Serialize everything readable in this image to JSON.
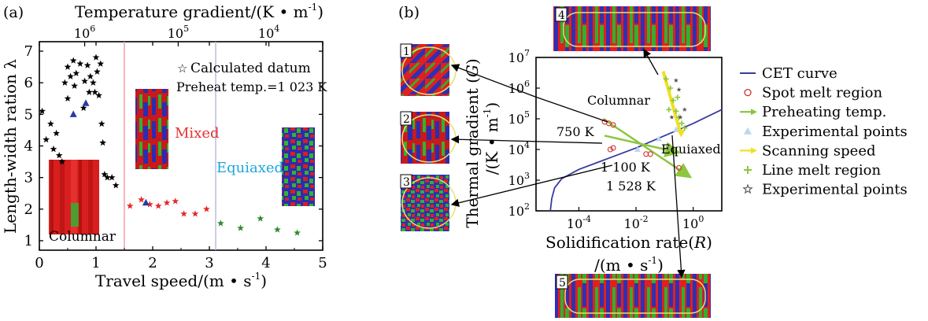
{
  "colors": {
    "axis": "#000000",
    "star_black": "#000000",
    "star_red": "#e52a2a",
    "star_green": "#2e8b2e",
    "triangle_blue": "#2a3aa8",
    "mixed_line": "#f29aa0",
    "equiaxed_line": "#b8b8dc",
    "mixed_text": "#e53030",
    "equiaxed_text": "#1aa7d8",
    "cet_curve": "#3a3aa0",
    "spot_melt": "#d03030",
    "preheat": "#8cc63f",
    "experimental_tri": "#b8d8ec",
    "scanning": "#f0e020",
    "line_melt": "#8cc63f",
    "experimental_star": "#555555",
    "grain_red": "#e02020",
    "grain_blue": "#3030b0",
    "grain_green": "#30b030"
  },
  "chart_data": [
    {
      "panel_label": "(a)",
      "type": "scatter",
      "top_axis_title": "Temperature gradient/(K • m",
      "top_axis_title_sup": "-1",
      "top_axis_title_end": ")",
      "top_ticks": [
        {
          "base": "10",
          "exp": "6",
          "at_speed": 0.8
        },
        {
          "base": "10",
          "exp": "5",
          "at_speed": 2.45
        },
        {
          "base": "10",
          "exp": "4",
          "at_speed": 4.05
        }
      ],
      "xlabel": "Travel speed/(m • s",
      "xlabel_sup": "-1",
      "xlabel_end": ")",
      "ylabel": "Length-width ration λ",
      "xlim": [
        0,
        5
      ],
      "ylim": [
        0.7,
        7.3
      ],
      "xticks": [
        "0",
        "1",
        "2",
        "3",
        "4",
        "5"
      ],
      "yticks": [
        "1",
        "2",
        "3",
        "4",
        "5",
        "6",
        "7"
      ],
      "legend": "Calculated datum",
      "preheat_note": "Preheat temp.=1 023 K",
      "region_boundaries": [
        1.5,
        3.1
      ],
      "region_labels": {
        "columnar": "Columnar",
        "mixed": "Mixed",
        "equiaxed": "Equiaxed"
      },
      "series": [
        {
          "kind": "star",
          "color": "star_black",
          "points": [
            [
              0.05,
              5.1
            ],
            [
              0.2,
              4.7
            ],
            [
              0.12,
              4.2
            ],
            [
              0.25,
              3.9
            ],
            [
              0.35,
              3.7
            ],
            [
              0.4,
              3.5
            ],
            [
              0.3,
              4.4
            ],
            [
              0.45,
              6.0
            ],
            [
              0.5,
              6.5
            ],
            [
              0.5,
              5.5
            ],
            [
              0.55,
              6.2
            ],
            [
              0.6,
              6.7
            ],
            [
              0.62,
              5.9
            ],
            [
              0.65,
              6.3
            ],
            [
              0.72,
              6.6
            ],
            [
              0.78,
              5.2
            ],
            [
              0.8,
              6.05
            ],
            [
              0.85,
              6.55
            ],
            [
              0.88,
              5.7
            ],
            [
              0.9,
              6.2
            ],
            [
              0.95,
              6.0
            ],
            [
              0.98,
              5.7
            ],
            [
              1.0,
              6.8
            ],
            [
              1.02,
              6.35
            ],
            [
              1.05,
              5.6
            ],
            [
              1.08,
              6.6
            ],
            [
              1.1,
              4.7
            ],
            [
              1.12,
              4.1
            ],
            [
              1.15,
              3.1
            ],
            [
              1.2,
              3.0
            ],
            [
              1.28,
              3.0
            ],
            [
              1.35,
              2.75
            ]
          ]
        },
        {
          "kind": "star",
          "color": "star_red",
          "points": [
            [
              1.6,
              2.1
            ],
            [
              1.8,
              2.3
            ],
            [
              1.95,
              2.15
            ],
            [
              2.1,
              2.1
            ],
            [
              2.25,
              2.2
            ],
            [
              2.4,
              2.25
            ],
            [
              2.55,
              1.85
            ],
            [
              2.75,
              1.85
            ],
            [
              2.95,
              2.0
            ]
          ]
        },
        {
          "kind": "star",
          "color": "star_green",
          "points": [
            [
              3.2,
              1.55
            ],
            [
              3.55,
              1.4
            ],
            [
              3.9,
              1.7
            ],
            [
              4.2,
              1.35
            ],
            [
              4.55,
              1.25
            ]
          ]
        },
        {
          "kind": "triangle",
          "color": "triangle_blue",
          "points": [
            [
              0.6,
              5.0
            ],
            [
              0.82,
              5.35
            ],
            [
              1.88,
              2.2
            ]
          ]
        }
      ]
    },
    {
      "panel_label": "(b)",
      "type": "line",
      "xlabel": "Solidification rate(",
      "xlabel_var": "R",
      "xlabel_end": ")",
      "xlabel2": "/(m • s",
      "xlabel2_sup": "-1",
      "xlabel2_end": ")",
      "ylabel": "Thermal gradient (",
      "ylabel_var": "G",
      "ylabel_end": ")",
      "ylabel2": "/(K • m",
      "ylabel2_sup": "-1",
      "ylabel2_end": ")",
      "scale": "log-log",
      "xlim_exp": [
        -5.5,
        1
      ],
      "ylim_exp": [
        2,
        7
      ],
      "xticks": [
        {
          "base": "10",
          "exp": "-4"
        },
        {
          "base": "10",
          "exp": "-2"
        },
        {
          "base": "10",
          "exp": "0"
        }
      ],
      "yticks": [
        {
          "base": "10",
          "exp": "2"
        },
        {
          "base": "10",
          "exp": "3"
        },
        {
          "base": "10",
          "exp": "4"
        },
        {
          "base": "10",
          "exp": "5"
        },
        {
          "base": "10",
          "exp": "6"
        },
        {
          "base": "10",
          "exp": "7"
        }
      ],
      "region_labels": {
        "columnar": "Columnar",
        "equiaxed": "Equiaxed"
      },
      "temperature_labels": [
        "750 K",
        "1 100 K",
        "1 528 K"
      ],
      "legend": [
        {
          "label": "CET curve",
          "marker": "line",
          "color": "cet_curve"
        },
        {
          "label": "Spot melt region",
          "marker": "circle",
          "color": "spot_melt"
        },
        {
          "label": "Preheating temp.",
          "marker": "arrow",
          "color": "preheat"
        },
        {
          "label": "Experimental points",
          "marker": "triangle",
          "color": "experimental_tri"
        },
        {
          "label": "Scanning speed",
          "marker": "arrow",
          "color": "scanning"
        },
        {
          "label": "Line melt region",
          "marker": "plus",
          "color": "line_melt"
        },
        {
          "label": "Experimental points",
          "marker": "star",
          "color": "experimental_star"
        }
      ],
      "cet_curve": [
        [
          -5.0,
          2.0
        ],
        [
          -4.95,
          2.4
        ],
        [
          -4.85,
          2.75
        ],
        [
          -4.6,
          3.05
        ],
        [
          -4.0,
          3.35
        ],
        [
          -3.0,
          3.7
        ],
        [
          -2.0,
          4.05
        ],
        [
          -1.0,
          4.45
        ],
        [
          0.0,
          4.85
        ],
        [
          1.0,
          5.3
        ]
      ],
      "spot_melt_points": [
        [
          -3.1,
          4.9
        ],
        [
          -2.95,
          4.85
        ],
        [
          -2.8,
          4.8
        ],
        [
          -2.9,
          4.0
        ],
        [
          -2.8,
          4.05
        ],
        [
          -1.65,
          3.85
        ],
        [
          -1.5,
          3.85
        ],
        [
          -0.5,
          3.4
        ]
      ],
      "preheat_arrows": [
        {
          "from": [
            -3.15,
            5.0
          ],
          "to": [
            -0.1,
            3.1
          ]
        },
        {
          "from": [
            -3.1,
            4.45
          ],
          "to": [
            -0.5,
            3.9
          ]
        }
      ],
      "scanning_arrow": {
        "from": [
          -1.05,
          6.55
        ],
        "to": [
          -0.45,
          4.55
        ]
      },
      "line_melt_points": [
        [
          -0.95,
          6.3
        ],
        [
          -0.8,
          6.0
        ],
        [
          -0.7,
          5.6
        ],
        [
          -0.6,
          5.25
        ],
        [
          -0.5,
          5.05
        ],
        [
          -0.4,
          4.85
        ],
        [
          -0.3,
          4.7
        ],
        [
          -0.85,
          5.3
        ],
        [
          -0.55,
          5.7
        ]
      ],
      "experimental_stars": [
        [
          -0.6,
          6.25
        ],
        [
          -0.5,
          5.95
        ],
        [
          -0.3,
          5.3
        ],
        [
          -0.45,
          5.05
        ],
        [
          -0.75,
          5.05
        ]
      ],
      "experimental_triangles": [
        [
          -1.95,
          4.0
        ],
        [
          -1.2,
          4.35
        ],
        [
          -0.6,
          4.65
        ]
      ]
    }
  ],
  "micrographs": [
    {
      "number": "1"
    },
    {
      "number": "2"
    },
    {
      "number": "3"
    },
    {
      "number": "4"
    },
    {
      "number": "5"
    }
  ]
}
